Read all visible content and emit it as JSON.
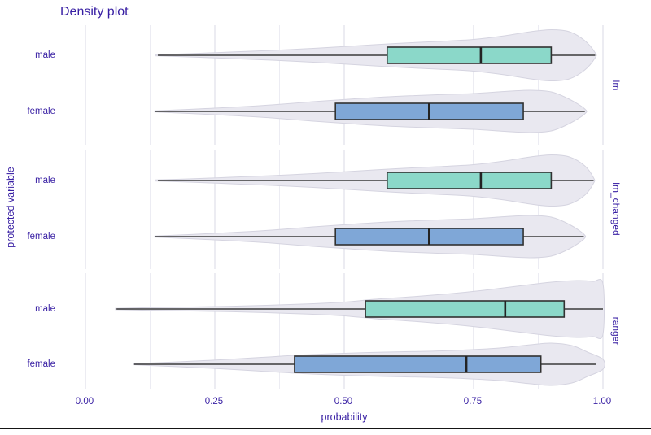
{
  "title": "Density plot",
  "axes": {
    "x_label": "probability",
    "y_label": "protected variable",
    "x_ticks": [
      "0.00",
      "0.25",
      "0.50",
      "0.75",
      "1.00"
    ]
  },
  "colors": {
    "text": "#371ea3",
    "male_fill": "#8bd8c9",
    "female_fill": "#7fa7d7",
    "box_stroke": "#313131",
    "median_stroke": "#232323",
    "whisker_stroke": "#3a3a3a",
    "violin_fill": "#e9e8f0",
    "violin_stroke": "#d5d4e0",
    "grid_major": "#dfdfe8",
    "grid_minor": "#ececf3",
    "baseline": "#151515"
  },
  "chart_data": {
    "type": "violin-box density plot, horizontal, faceted by model",
    "x_axis": {
      "label": "probability",
      "range": [
        0,
        1
      ],
      "major_ticks": [
        0,
        0.25,
        0.5,
        0.75,
        1
      ],
      "minor_gridlines": [
        0.125,
        0.375,
        0.625,
        0.875
      ]
    },
    "y_axis": {
      "label": "protected variable",
      "groups": [
        "male",
        "female"
      ]
    },
    "facets": [
      {
        "label": "lm",
        "rows": [
          {
            "group": "male",
            "color_key": "male_fill",
            "whisker_min": 0.14,
            "q1": 0.583,
            "median": 0.764,
            "q3": 0.9,
            "whisker_max": 0.985,
            "clip_right": false,
            "violin_profile": [
              [
                0.135,
                0.7
              ],
              [
                0.2,
                2
              ],
              [
                0.28,
                4
              ],
              [
                0.36,
                6
              ],
              [
                0.44,
                8.5
              ],
              [
                0.52,
                11.5
              ],
              [
                0.6,
                14.5
              ],
              [
                0.68,
                17
              ],
              [
                0.75,
                19.5
              ],
              [
                0.81,
                24
              ],
              [
                0.86,
                29
              ],
              [
                0.9,
                31.5
              ],
              [
                0.935,
                29
              ],
              [
                0.965,
                18
              ],
              [
                0.985,
                3
              ]
            ]
          },
          {
            "group": "female",
            "color_key": "female_fill",
            "whisker_min": 0.134,
            "q1": 0.483,
            "median": 0.664,
            "q3": 0.846,
            "whisker_max": 0.965,
            "clip_right": false,
            "violin_profile": [
              [
                0.134,
                0.7
              ],
              [
                0.2,
                2.5
              ],
              [
                0.28,
                5
              ],
              [
                0.36,
                8
              ],
              [
                0.44,
                12
              ],
              [
                0.52,
                15.5
              ],
              [
                0.6,
                18.5
              ],
              [
                0.68,
                20.5
              ],
              [
                0.75,
                22
              ],
              [
                0.81,
                24.5
              ],
              [
                0.86,
                26
              ],
              [
                0.9,
                24
              ],
              [
                0.935,
                15
              ],
              [
                0.965,
                3
              ]
            ]
          }
        ]
      },
      {
        "label": "lm_changed",
        "rows": [
          {
            "group": "male",
            "color_key": "male_fill",
            "whisker_min": 0.14,
            "q1": 0.583,
            "median": 0.764,
            "q3": 0.9,
            "whisker_max": 0.982,
            "clip_right": false,
            "violin_profile": [
              [
                0.135,
                0.7
              ],
              [
                0.2,
                2
              ],
              [
                0.28,
                4
              ],
              [
                0.36,
                6
              ],
              [
                0.44,
                8.5
              ],
              [
                0.52,
                11.5
              ],
              [
                0.6,
                14.5
              ],
              [
                0.68,
                17
              ],
              [
                0.75,
                19.5
              ],
              [
                0.81,
                24
              ],
              [
                0.86,
                29
              ],
              [
                0.9,
                31.5
              ],
              [
                0.935,
                29
              ],
              [
                0.965,
                18
              ],
              [
                0.982,
                3
              ]
            ]
          },
          {
            "group": "female",
            "color_key": "female_fill",
            "whisker_min": 0.134,
            "q1": 0.483,
            "median": 0.664,
            "q3": 0.846,
            "whisker_max": 0.963,
            "clip_right": false,
            "violin_profile": [
              [
                0.134,
                0.7
              ],
              [
                0.2,
                2.5
              ],
              [
                0.28,
                5
              ],
              [
                0.36,
                8
              ],
              [
                0.44,
                12
              ],
              [
                0.52,
                15.5
              ],
              [
                0.6,
                18.5
              ],
              [
                0.68,
                20.5
              ],
              [
                0.75,
                22
              ],
              [
                0.81,
                24.5
              ],
              [
                0.86,
                26
              ],
              [
                0.9,
                24
              ],
              [
                0.935,
                15
              ],
              [
                0.963,
                3
              ]
            ]
          }
        ]
      },
      {
        "label": "ranger",
        "rows": [
          {
            "group": "male",
            "color_key": "male_fill",
            "whisker_min": 0.06,
            "q1": 0.541,
            "median": 0.811,
            "q3": 0.925,
            "whisker_max": 1.0,
            "clip_right": true,
            "violin_profile": [
              [
                0.058,
                0.7
              ],
              [
                0.15,
                2
              ],
              [
                0.25,
                3
              ],
              [
                0.35,
                4.5
              ],
              [
                0.44,
                6.5
              ],
              [
                0.5,
                8.5
              ],
              [
                0.56,
                12
              ],
              [
                0.63,
                15
              ],
              [
                0.7,
                18.5
              ],
              [
                0.77,
                23
              ],
              [
                0.84,
                28.5
              ],
              [
                0.9,
                33
              ],
              [
                0.95,
                35
              ],
              [
                0.98,
                34
              ],
              [
                1.0,
                31
              ]
            ]
          },
          {
            "group": "female",
            "color_key": "female_fill",
            "whisker_min": 0.094,
            "q1": 0.404,
            "median": 0.736,
            "q3": 0.88,
            "whisker_max": 0.987,
            "clip_right": true,
            "violin_profile": [
              [
                0.094,
                0.7
              ],
              [
                0.18,
                3
              ],
              [
                0.26,
                5.5
              ],
              [
                0.34,
                8.5
              ],
              [
                0.42,
                11.5
              ],
              [
                0.5,
                13.5
              ],
              [
                0.58,
                15
              ],
              [
                0.66,
                16
              ],
              [
                0.73,
                17.5
              ],
              [
                0.8,
                20
              ],
              [
                0.86,
                24
              ],
              [
                0.9,
                26
              ],
              [
                0.94,
                23
              ],
              [
                0.97,
                15
              ],
              [
                1.0,
                6
              ]
            ]
          }
        ]
      }
    ]
  }
}
